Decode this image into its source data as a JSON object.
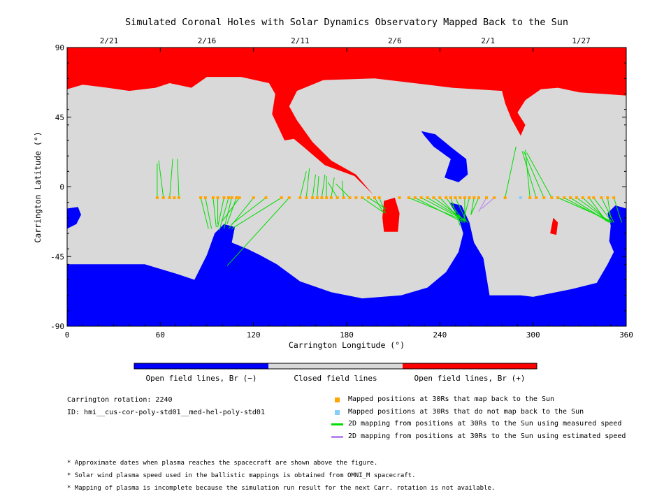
{
  "chart_data": {
    "type": "map",
    "title": "Simulated Coronal Holes with Solar Dynamics Observatory Mapped Back to the Sun",
    "xlabel": "Carrington Longitude (°)",
    "ylabel": "Carrington Latitude (°)",
    "xlim": [
      0,
      360
    ],
    "ylim": [
      -90,
      90
    ],
    "xticks": [
      0,
      60,
      120,
      180,
      240,
      300,
      360
    ],
    "yticks": [
      90,
      45,
      0,
      -45,
      -90
    ],
    "top_date_ticks": [
      {
        "lon": 27,
        "label": "2/21"
      },
      {
        "lon": 90,
        "label": "2/16"
      },
      {
        "lon": 150,
        "label": "2/11"
      },
      {
        "lon": 211,
        "label": "2/6"
      },
      {
        "lon": 271,
        "label": "2/1"
      },
      {
        "lon": 331,
        "label": "1/27"
      }
    ],
    "colors": {
      "open_negative": "#0000ff",
      "closed": "#d9d9d9",
      "open_positive": "#ff0000",
      "mapped": "#ffa500",
      "unmapped": "#87cefa",
      "measured": "#00dd00",
      "estimated": "#bb88ee"
    },
    "regions": {
      "positive": [
        [
          [
            0,
            90
          ],
          [
            360,
            90
          ],
          [
            360,
            59
          ],
          [
            330,
            61
          ],
          [
            316,
            64
          ],
          [
            305,
            63
          ],
          [
            295,
            56
          ],
          [
            290,
            48
          ],
          [
            295,
            40
          ],
          [
            292,
            33
          ],
          [
            286,
            44
          ],
          [
            282,
            54
          ],
          [
            280,
            62
          ],
          [
            248,
            64
          ],
          [
            232,
            66
          ],
          [
            198,
            70
          ],
          [
            165,
            69
          ],
          [
            148,
            62
          ],
          [
            143,
            52
          ],
          [
            148,
            43
          ],
          [
            158,
            29
          ],
          [
            170,
            17
          ],
          [
            186,
            8
          ],
          [
            197,
            -5
          ],
          [
            185,
            7
          ],
          [
            166,
            14
          ],
          [
            152,
            26
          ],
          [
            146,
            31
          ],
          [
            140,
            30
          ],
          [
            132,
            47
          ],
          [
            134,
            60
          ],
          [
            130,
            67
          ],
          [
            112,
            71
          ],
          [
            90,
            71
          ],
          [
            80,
            64
          ],
          [
            66,
            67
          ],
          [
            57,
            64
          ],
          [
            40,
            62
          ],
          [
            26,
            64
          ],
          [
            10,
            66
          ],
          [
            0,
            63
          ]
        ],
        [
          [
            204,
            -9
          ],
          [
            211,
            -7
          ],
          [
            214,
            -17
          ],
          [
            213,
            -29
          ],
          [
            204,
            -29
          ],
          [
            203,
            -20
          ]
        ],
        [
          [
            313,
            -20
          ],
          [
            316,
            -23
          ],
          [
            315,
            -31
          ],
          [
            311,
            -30
          ]
        ]
      ],
      "negative": [
        [
          [
            0,
            -90
          ],
          [
            360,
            -90
          ],
          [
            360,
            -14
          ],
          [
            353,
            -12
          ],
          [
            348,
            -17
          ],
          [
            350,
            -25
          ],
          [
            349,
            -35
          ],
          [
            352,
            -42
          ],
          [
            348,
            -50
          ],
          [
            341,
            -62
          ],
          [
            325,
            -66
          ],
          [
            300,
            -71
          ],
          [
            292,
            -70
          ],
          [
            272,
            -70
          ],
          [
            270,
            -58
          ],
          [
            268,
            -46
          ],
          [
            262,
            -36
          ],
          [
            259,
            -23
          ],
          [
            254,
            -12
          ],
          [
            246,
            -10
          ],
          [
            252,
            -20
          ],
          [
            255,
            -30
          ],
          [
            252,
            -42
          ],
          [
            244,
            -55
          ],
          [
            232,
            -65
          ],
          [
            215,
            -70
          ],
          [
            190,
            -72
          ],
          [
            170,
            -68
          ],
          [
            150,
            -61
          ],
          [
            135,
            -50
          ],
          [
            124,
            -44
          ],
          [
            116,
            -40
          ],
          [
            106,
            -36
          ],
          [
            108,
            -26
          ],
          [
            101,
            -24
          ],
          [
            95,
            -30
          ],
          [
            90,
            -44
          ],
          [
            82,
            -60
          ],
          [
            70,
            -56
          ],
          [
            50,
            -50
          ],
          [
            30,
            -50
          ],
          [
            15,
            -50
          ],
          [
            0,
            -50
          ]
        ],
        [
          [
            0,
            -14
          ],
          [
            7,
            -13
          ],
          [
            9,
            -18
          ],
          [
            6,
            -24
          ],
          [
            0,
            -27
          ]
        ],
        [
          [
            228,
            36
          ],
          [
            237,
            34
          ],
          [
            248,
            25
          ],
          [
            257,
            18
          ],
          [
            258,
            8
          ],
          [
            252,
            3
          ],
          [
            243,
            6
          ],
          [
            247,
            18
          ],
          [
            236,
            26
          ],
          [
            230,
            33
          ]
        ]
      ]
    },
    "mapped_points_lon": [
      58,
      62,
      66,
      69,
      72,
      86,
      89,
      94,
      97,
      101,
      104,
      106,
      109,
      111,
      120,
      128,
      138,
      143,
      150,
      154,
      158,
      161,
      164,
      167,
      170,
      174,
      178,
      182,
      186,
      190,
      194,
      198,
      201,
      214,
      220,
      224,
      228,
      232,
      236,
      240,
      244,
      247,
      250,
      253,
      256,
      259,
      262,
      265,
      270,
      275,
      282,
      298,
      302,
      307,
      312,
      316,
      320,
      324,
      328,
      332,
      336,
      339,
      344,
      348,
      352
    ],
    "unmapped_points_lon": [
      292
    ],
    "measured_links": [
      [
        58,
        -7,
        58,
        15
      ],
      [
        62,
        -7,
        59,
        17
      ],
      [
        66,
        -7,
        68,
        18
      ],
      [
        72,
        -7,
        71,
        18
      ],
      [
        86,
        -7,
        91,
        -27
      ],
      [
        89,
        -7,
        93,
        -27
      ],
      [
        94,
        -7,
        96,
        -26
      ],
      [
        97,
        -7,
        97,
        -24
      ],
      [
        101,
        -7,
        97,
        -26
      ],
      [
        104,
        -7,
        98,
        -28
      ],
      [
        106,
        -7,
        101,
        -27
      ],
      [
        109,
        -7,
        103,
        -24
      ],
      [
        111,
        -7,
        100,
        -22
      ],
      [
        120,
        -7,
        104,
        -27
      ],
      [
        128,
        -7,
        106,
        -24
      ],
      [
        138,
        -7,
        106,
        -27
      ],
      [
        143,
        -7,
        103,
        -51
      ],
      [
        150,
        -7,
        154,
        10
      ],
      [
        154,
        -7,
        156,
        12
      ],
      [
        158,
        -7,
        160,
        8
      ],
      [
        161,
        -7,
        162,
        7
      ],
      [
        164,
        -7,
        166,
        8
      ],
      [
        167,
        -7,
        167,
        7
      ],
      [
        170,
        -7,
        172,
        6
      ],
      [
        174,
        -7,
        168,
        3
      ],
      [
        178,
        -7,
        177,
        4
      ],
      [
        182,
        -7,
        173,
        2
      ],
      [
        190,
        -7,
        203,
        -16
      ],
      [
        194,
        -7,
        205,
        -14
      ],
      [
        198,
        -7,
        204,
        -17
      ],
      [
        201,
        -7,
        205,
        -17
      ],
      [
        220,
        -7,
        256,
        -22
      ],
      [
        224,
        -7,
        255,
        -23
      ],
      [
        228,
        -7,
        253,
        -20
      ],
      [
        232,
        -7,
        257,
        -22
      ],
      [
        236,
        -7,
        258,
        -23
      ],
      [
        240,
        -7,
        254,
        -22
      ],
      [
        244,
        -7,
        256,
        -23
      ],
      [
        247,
        -7,
        253,
        -25
      ],
      [
        250,
        -7,
        257,
        -22
      ],
      [
        256,
        -7,
        256,
        -22
      ],
      [
        259,
        -7,
        255,
        -22
      ],
      [
        262,
        -7,
        260,
        -18
      ],
      [
        265,
        -7,
        260,
        -18
      ],
      [
        282,
        -7,
        289,
        26
      ],
      [
        298,
        -7,
        295,
        24
      ],
      [
        302,
        -7,
        293,
        23
      ],
      [
        307,
        -7,
        294,
        23
      ],
      [
        312,
        -7,
        296,
        22
      ],
      [
        316,
        -7,
        350,
        -22
      ],
      [
        320,
        -7,
        350,
        -23
      ],
      [
        324,
        -7,
        349,
        -23
      ],
      [
        328,
        -7,
        350,
        -23
      ],
      [
        332,
        -7,
        348,
        -22
      ],
      [
        336,
        -7,
        347,
        -22
      ],
      [
        339,
        -7,
        351,
        -23
      ],
      [
        344,
        -7,
        352,
        -23
      ],
      [
        348,
        -7,
        350,
        -20
      ],
      [
        352,
        -7,
        357,
        -23
      ]
    ],
    "estimated_links": [
      [
        275,
        -7,
        267,
        -14
      ],
      [
        270,
        -7,
        265,
        -16
      ]
    ]
  },
  "colorbar": {
    "labels": [
      "Open field lines, Br (−)",
      "Closed field lines",
      "Open field lines, Br (+)"
    ]
  },
  "info": {
    "rotation": "Carrington rotation: 2240",
    "id": "ID: hmi__cus-cor-poly-std01__med-hel-poly-std01"
  },
  "legend": [
    {
      "marker": "square-orange",
      "label": "Mapped positions at 30Rs that map back to the Sun"
    },
    {
      "marker": "square-lightblue",
      "label": "Mapped positions at 30Rs that do not map back to the Sun"
    },
    {
      "marker": "line-green",
      "label": "2D mapping from positions at 30Rs to the Sun using measured speed"
    },
    {
      "marker": "line-purple",
      "label": "2D mapping from positions at 30Rs to the Sun using estimated speed"
    }
  ],
  "notes": [
    "* Approximate dates when plasma reaches the spacecraft are shown above the figure.",
    "* Solar wind plasma speed used in the ballistic mappings is obtained from OMNI_M spacecraft.",
    "* Mapping of plasma is incomplete because the simulation run result for the next Carr. rotation is not available."
  ]
}
